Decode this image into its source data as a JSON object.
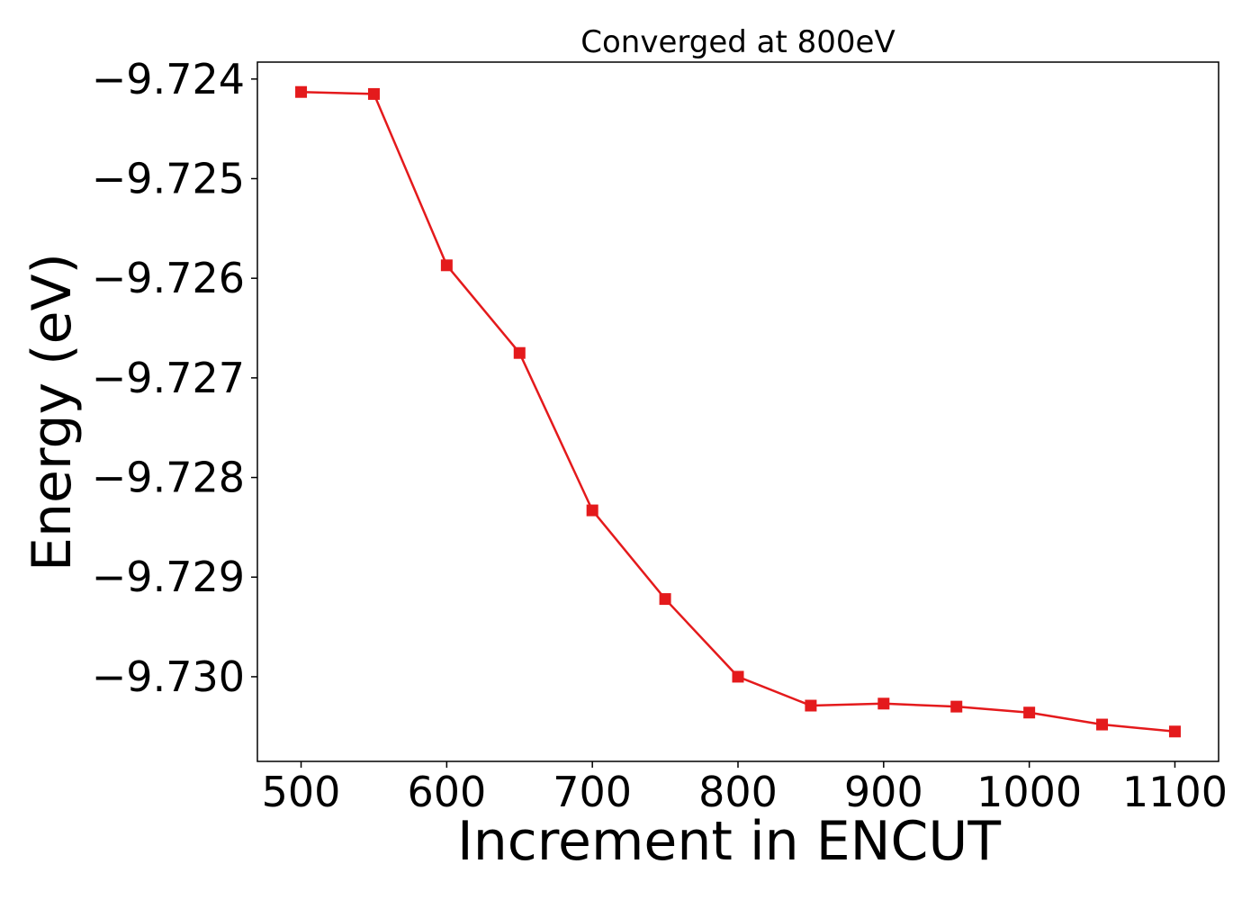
{
  "chart_data": {
    "type": "line",
    "title": "Converged at 800eV",
    "xlabel": "Increment in ENCUT",
    "ylabel": "Energy (eV)",
    "xlim": [
      470,
      1130
    ],
    "ylim": [
      -9.73085,
      -9.72383
    ],
    "x_ticks": [
      500,
      600,
      700,
      800,
      900,
      1000,
      1100
    ],
    "x_tick_labels": [
      "500",
      "600",
      "700",
      "800",
      "900",
      "1000",
      "1100"
    ],
    "y_ticks": [
      -9.724,
      -9.725,
      -9.726,
      -9.727,
      -9.728,
      -9.729,
      -9.73
    ],
    "y_tick_labels": [
      "−9.724",
      "−9.725",
      "−9.726",
      "−9.727",
      "−9.728",
      "−9.729",
      "−9.730"
    ],
    "grid": false,
    "legend": "none",
    "series": [
      {
        "color": "#e41a1c",
        "marker": "square",
        "x": [
          500,
          550,
          600,
          650,
          700,
          750,
          800,
          850,
          900,
          950,
          1000,
          1050,
          1100
        ],
        "y": [
          -9.72413,
          -9.72415,
          -9.72587,
          -9.72675,
          -9.72833,
          -9.72922,
          -9.73,
          -9.73029,
          -9.73027,
          -9.7303,
          -9.73036,
          -9.73048,
          -9.73055
        ]
      }
    ]
  }
}
